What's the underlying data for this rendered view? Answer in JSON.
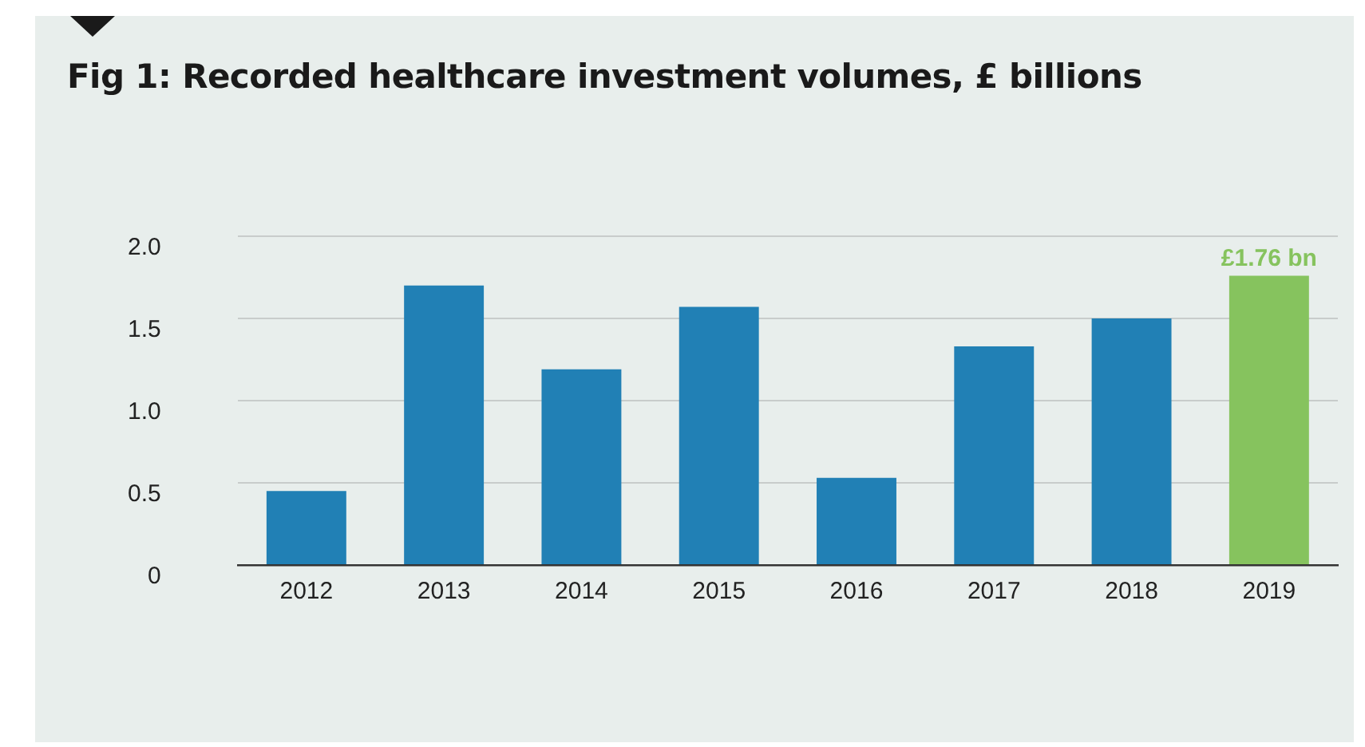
{
  "chart_data": {
    "type": "bar",
    "title": "Fig 1: Recorded healthcare investment volumes, £ billions",
    "categories": [
      "2012",
      "2013",
      "2014",
      "2015",
      "2016",
      "2017",
      "2018",
      "2019"
    ],
    "values": [
      0.45,
      1.7,
      1.19,
      1.57,
      0.53,
      1.33,
      1.5,
      1.76
    ],
    "colors": [
      "#2180b5",
      "#2180b5",
      "#2180b5",
      "#2180b5",
      "#2180b5",
      "#2180b5",
      "#2180b5",
      "#86c35e"
    ],
    "value_labels": [
      null,
      null,
      null,
      null,
      null,
      null,
      null,
      "£1.76 bn"
    ],
    "ylim": [
      0,
      2
    ],
    "yticks": [
      0,
      {
        "value": 0.5,
        "label": "0.5"
      },
      {
        "value": 1,
        "label": "1.0"
      },
      {
        "value": 1.5,
        "label": "1.5"
      },
      {
        "value": 2,
        "label": "2.0"
      }
    ],
    "grid": "y",
    "legend": false
  }
}
